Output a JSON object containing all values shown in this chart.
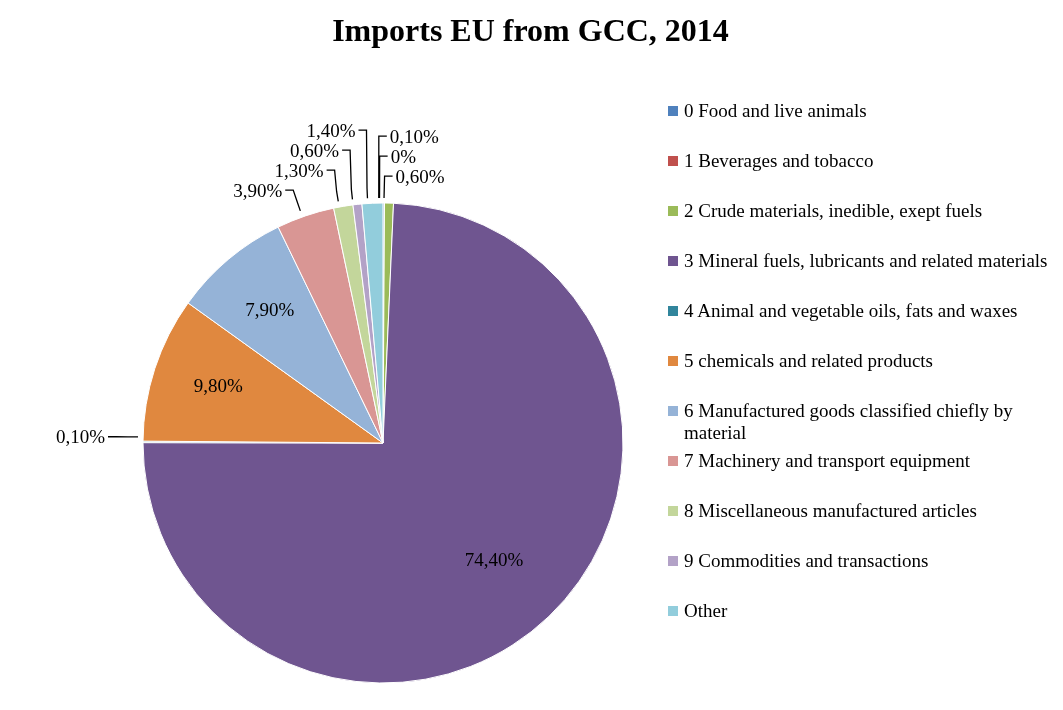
{
  "chart_data": {
    "type": "pie",
    "title": "Imports EU from GCC, 2014",
    "categories": [
      "0 Food and live animals",
      "1 Beverages and tobacco",
      "2 Crude materials, inedible, exept fuels",
      "3 Mineral fuels, lubricants and related materials",
      "4 Animal and vegetable oils, fats and waxes",
      "5 chemicals and related products",
      "6 Manufactured goods classified chiefly by material",
      "7 Machinery and transport equipment",
      "8 Miscellaneous manufactured articles",
      "9 Commodities and transactions",
      "Other"
    ],
    "values": [
      0.1,
      0,
      0.6,
      74.4,
      0.1,
      9.8,
      7.9,
      3.9,
      1.3,
      0.6,
      1.4
    ],
    "value_labels": [
      "0,10%",
      "0%",
      "0,60%",
      "74,40%",
      "0,10%",
      "9,80%",
      "7,90%",
      "3,90%",
      "1,30%",
      "0,60%",
      "1,40%"
    ],
    "colors": [
      "#4f81bd",
      "#c0504d",
      "#9bbb59",
      "#6f5590",
      "#31859c",
      "#e0883f",
      "#95b3d7",
      "#d99694",
      "#c3d69b",
      "#b3a2c7",
      "#92cddc"
    ],
    "legend": "right"
  }
}
